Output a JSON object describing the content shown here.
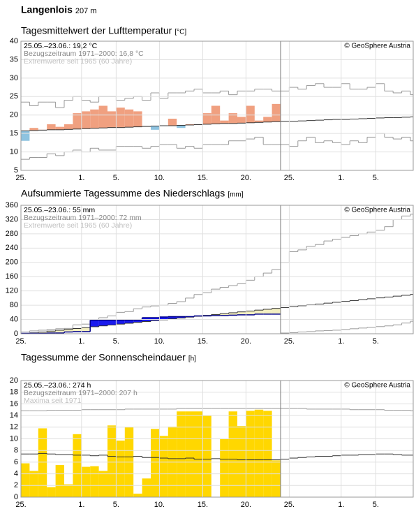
{
  "header": {
    "station": "Langenlois",
    "elevation": "207 m"
  },
  "chart_data": [
    {
      "type": "anomaly",
      "title": "Tagesmittelwert der Lufttemperatur",
      "unit": "[°C]",
      "annotations": [
        {
          "text": "25.05.–23.06.: 19,2 °C",
          "color": "#000000"
        },
        {
          "text": "Bezugszeitraum 1971–2000: 16,8 °C",
          "color": "#888888"
        },
        {
          "text": "Extremwerte seit 1965 (60 Jahre)",
          "color": "#c0c0c0"
        }
      ],
      "credit": "© GeoSphere Austria",
      "categories": [
        "25.",
        null,
        null,
        null,
        null,
        null,
        null,
        "1.",
        null,
        null,
        null,
        "5.",
        null,
        null,
        null,
        null,
        "10.",
        null,
        null,
        null,
        null,
        "15.",
        null,
        null,
        null,
        null,
        "20.",
        null,
        null,
        null,
        null,
        "25.",
        null,
        null,
        null,
        null,
        null,
        "1.",
        null,
        null,
        null,
        "5.",
        null,
        null,
        null,
        null
      ],
      "series": [
        {
          "color": "#f0a080",
          "color_below": "#8ec3e0",
          "values": [
            13,
            16.5,
            16,
            17.5,
            16.8,
            17.5,
            20.5,
            21,
            21.5,
            22.5,
            21,
            22,
            21.5,
            21,
            17,
            16,
            17,
            19,
            16.5,
            17.5,
            17.5,
            20.5,
            22.5,
            18.5,
            20.5,
            19.5,
            22.5,
            18.5,
            19.5,
            23,
            null,
            null,
            null,
            null,
            null,
            null,
            null,
            null,
            null,
            null,
            null,
            null,
            null,
            null,
            null,
            null
          ]
        },
        {
          "color": "#333333",
          "values": [
            15.7,
            15.8,
            15.9,
            16.0,
            16.0,
            16.1,
            16.2,
            16.3,
            16.4,
            16.5,
            16.6,
            16.6,
            16.7,
            16.8,
            16.9,
            17.0,
            17.1,
            17.1,
            17.2,
            17.3,
            17.4,
            17.5,
            17.6,
            17.7,
            17.7,
            17.8,
            17.9,
            18.0,
            18.1,
            18.2,
            18.3,
            18.3,
            18.4,
            18.5,
            18.6,
            18.7,
            18.8,
            18.8,
            18.9,
            19.0,
            19.1,
            19.2,
            19.3,
            19.3,
            19.4,
            19.5
          ]
        },
        {
          "color": "#999999",
          "values": [
            23.5,
            22.5,
            23.5,
            23.5,
            22,
            24,
            25,
            24,
            23.5,
            25,
            25,
            24,
            24.5,
            25,
            24,
            26,
            24.5,
            26,
            26,
            26.5,
            27,
            26,
            26,
            26.5,
            25.5,
            26.5,
            26.5,
            27,
            27,
            26.5,
            26.5,
            27.5,
            27,
            28,
            28.5,
            27.5,
            27.5,
            28.5,
            27,
            27,
            27.5,
            28.5,
            26.5,
            26,
            26.5,
            25.5
          ]
        },
        {
          "color": "#999999",
          "values": [
            8,
            8.5,
            8.5,
            9.5,
            9,
            10,
            10.5,
            10,
            11,
            10.5,
            10.5,
            11.5,
            11.5,
            11.5,
            11,
            11.5,
            12,
            12,
            11,
            11.5,
            11,
            12,
            12,
            12,
            13,
            13,
            13.5,
            14,
            12,
            12,
            12,
            11.5,
            13,
            14,
            12.5,
            13,
            12.5,
            12,
            13,
            12.5,
            14,
            15,
            14,
            13.5,
            14,
            13
          ]
        }
      ],
      "ylim": [
        5,
        40
      ],
      "yticks": [
        5,
        10,
        15,
        20,
        25,
        30,
        35,
        40
      ],
      "grid": true
    },
    {
      "type": "area",
      "title": "Aufsummierte Tagessumme des Niederschlags",
      "unit": "[mm]",
      "annotations": [
        {
          "text": "25.05.–23.06.: 55 mm",
          "color": "#000000"
        },
        {
          "text": "Bezugszeitraum 1971–2000: 72 mm",
          "color": "#888888"
        },
        {
          "text": "Extremwerte seit 1965 (60 Jahre)",
          "color": "#c0c0c0"
        }
      ],
      "credit": "© GeoSphere Austria",
      "categories": [
        "25.",
        null,
        null,
        null,
        null,
        null,
        null,
        "1.",
        null,
        null,
        null,
        "5.",
        null,
        null,
        null,
        null,
        "10.",
        null,
        null,
        null,
        null,
        "15.",
        null,
        null,
        null,
        null,
        "20.",
        null,
        null,
        null,
        null,
        "25.",
        null,
        null,
        null,
        null,
        null,
        "1.",
        null,
        null,
        null,
        "5.",
        null,
        null,
        null,
        null
      ],
      "series": [
        {
          "color": "#00008b",
          "color_above": "#1a1aee",
          "color_below": "#f3efc0",
          "values": [
            1,
            1,
            1,
            2,
            2,
            5,
            6,
            6,
            38,
            38,
            38,
            38,
            38,
            38,
            45,
            45,
            47,
            48,
            48,
            48,
            50,
            50,
            51,
            51,
            52,
            53,
            53,
            55,
            55,
            55,
            null,
            null,
            null,
            null,
            null,
            null,
            null,
            null,
            null,
            null,
            null,
            null,
            null,
            null,
            null,
            null
          ]
        },
        {
          "color": "#333333",
          "values": [
            0,
            2.5,
            4.9,
            7.4,
            9.8,
            12.3,
            14.7,
            17.2,
            19.6,
            22.1,
            24.5,
            27,
            29.4,
            31.9,
            34.3,
            36.8,
            39.2,
            41.7,
            44.1,
            46.6,
            49,
            51.5,
            53.9,
            56.4,
            58.8,
            61.3,
            63.7,
            66.2,
            68.6,
            71.1,
            73.5,
            76,
            78.4,
            80.9,
            83.3,
            85.8,
            88.2,
            90.7,
            93.1,
            95.6,
            98,
            100.5,
            102.9,
            105.4,
            107.8,
            110.3
          ]
        },
        {
          "color": "#999999",
          "values": [
            5,
            8,
            10,
            12,
            14,
            15,
            25,
            27,
            40,
            45,
            50,
            60,
            62,
            70,
            75,
            78,
            80,
            85,
            90,
            100,
            110,
            115,
            125,
            130,
            135,
            140,
            150,
            160,
            170,
            180,
            200,
            230,
            235,
            245,
            250,
            260,
            265,
            270,
            275,
            280,
            285,
            290,
            300,
            320,
            330,
            335
          ]
        },
        {
          "color": "#999999",
          "values": [
            0,
            0,
            0,
            0,
            0,
            0,
            0,
            0,
            0,
            0,
            0,
            0,
            0,
            0,
            0,
            0,
            0,
            0,
            0,
            0,
            0,
            0,
            0,
            0,
            0,
            0,
            0,
            0,
            0,
            0,
            2,
            3,
            5,
            6,
            8,
            9,
            10,
            12,
            14,
            16,
            18,
            20,
            22,
            25,
            30,
            35
          ]
        }
      ],
      "ylim": [
        0,
        360
      ],
      "yticks": [
        0,
        40,
        80,
        120,
        160,
        200,
        240,
        280,
        320,
        360
      ],
      "grid": true
    },
    {
      "type": "bar",
      "title": "Tagessumme der Sonnenscheindauer",
      "unit": "[h]",
      "annotations": [
        {
          "text": "25.05.–23.06.: 274 h",
          "color": "#000000"
        },
        {
          "text": "Bezugszeitraum 1971–2000: 207 h",
          "color": "#888888"
        },
        {
          "text": "Maxima seit 1971",
          "color": "#c0c0c0"
        }
      ],
      "credit": "© GeoSphere Austria",
      "categories": [
        "25.",
        null,
        null,
        null,
        null,
        null,
        null,
        "1.",
        null,
        null,
        null,
        "5.",
        null,
        null,
        null,
        null,
        "10.",
        null,
        null,
        null,
        null,
        "15.",
        null,
        null,
        null,
        null,
        "20.",
        null,
        null,
        null,
        null,
        "25.",
        null,
        null,
        null,
        null,
        null,
        "1.",
        null,
        null,
        null,
        "5.",
        null,
        null,
        null,
        null
      ],
      "series": [
        {
          "color": "#ffd700",
          "values": [
            5.8,
            4.5,
            11.8,
            1.7,
            5.5,
            2.2,
            10.8,
            5.2,
            5.3,
            4.5,
            12.3,
            9.7,
            12.0,
            0.6,
            3.2,
            11.7,
            10.5,
            12.1,
            14.7,
            14.7,
            14.7,
            14.0,
            0,
            10.0,
            14.7,
            12.2,
            14.8,
            15.0,
            14.8,
            6.3,
            null,
            null,
            null,
            null,
            null,
            null,
            null,
            null,
            null,
            null,
            null,
            null,
            null,
            null,
            null,
            null
          ]
        },
        {
          "color": "#333333",
          "values": [
            7.4,
            7.4,
            7.5,
            7.4,
            7.3,
            7.3,
            7.2,
            7.2,
            7.1,
            7.2,
            7.0,
            6.9,
            6.9,
            7.0,
            6.8,
            6.8,
            6.7,
            6.6,
            6.6,
            6.7,
            6.5,
            6.5,
            6.6,
            6.5,
            6.5,
            6.4,
            6.4,
            6.4,
            6.4,
            6.4,
            6.5,
            6.7,
            6.8,
            6.9,
            7.0,
            7.0,
            7.1,
            7.2,
            7.2,
            7.3,
            7.3,
            7.4,
            7.4,
            7.3,
            7.2,
            7.2
          ]
        },
        {
          "color": "#999999",
          "values": [
            14.8,
            14.8,
            14.8,
            14.9,
            14.9,
            14.9,
            14.9,
            15.0,
            15.0,
            15.0,
            15.0,
            15.0,
            15.1,
            15.1,
            15.1,
            15.1,
            15.1,
            15.1,
            15.2,
            15.2,
            15.2,
            15.2,
            15.2,
            15.2,
            15.2,
            15.2,
            15.2,
            15.2,
            15.2,
            15.2,
            15.2,
            15.2,
            15.2,
            15.1,
            15.1,
            15.1,
            15.1,
            15.1,
            15.0,
            15.0,
            15.0,
            15.0,
            14.9,
            14.9,
            14.9,
            14.8
          ]
        }
      ],
      "ylim": [
        0,
        20
      ],
      "yticks": [
        0,
        2,
        4,
        6,
        8,
        10,
        12,
        14,
        16,
        18,
        20
      ],
      "grid": true
    }
  ]
}
